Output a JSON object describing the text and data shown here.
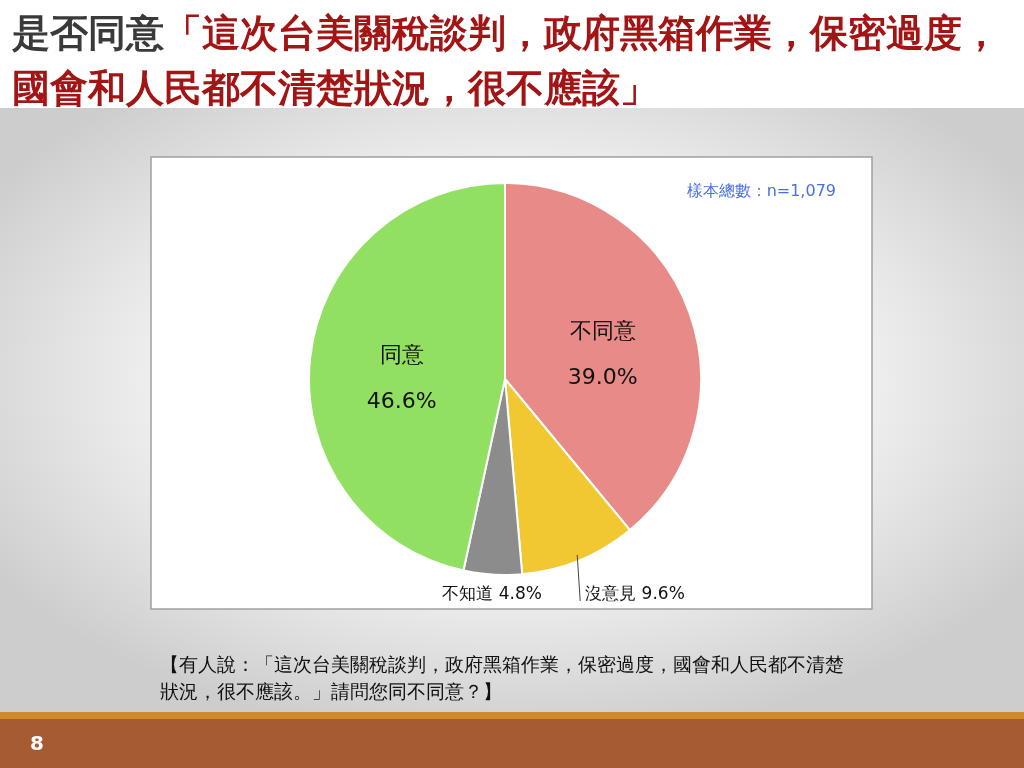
{
  "chart_data": {
    "type": "pie",
    "title": "是否同意「這次台美關稅談判，政府黑箱作業，保密過度，國會和人民都不清楚狀況，很不應該」",
    "categories": [
      "不同意",
      "沒意見",
      "不知道",
      "同意"
    ],
    "values": [
      39.0,
      9.6,
      4.8,
      46.6
    ],
    "colors": [
      "#e88a87",
      "#f2c832",
      "#8c8c8c",
      "#92e062"
    ],
    "value_labels": [
      "39.0%",
      "9.6%",
      "4.8%",
      "46.6%"
    ],
    "annotations": [
      "樣本總數：n=1,079",
      "【有人說：「這次台美關稅談判，政府黑箱作業，保密過度，國會和人民都不清楚狀況，很不應該。」請問您同不同意？】",
      "8"
    ]
  }
}
